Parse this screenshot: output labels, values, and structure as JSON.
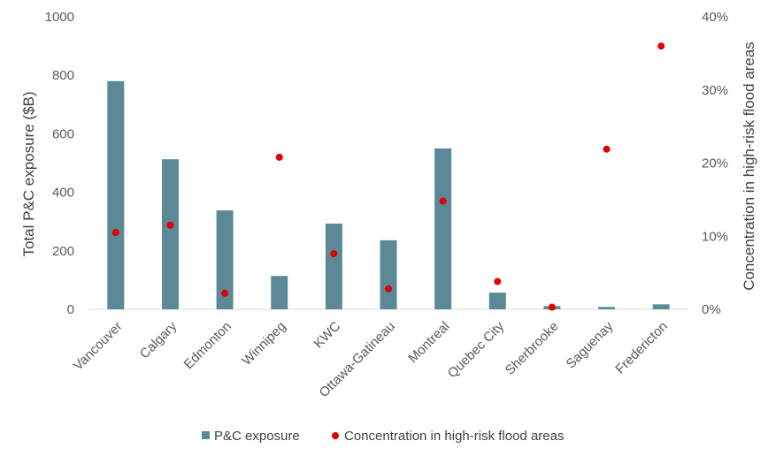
{
  "chart_data": {
    "type": "bar",
    "categories": [
      "Vancouver",
      "Calgary",
      "Edmonton",
      "Winnipeg",
      "KWC",
      "Ottawa-Gatineau",
      "Montreal",
      "Quebec City",
      "Sherbrooke",
      "Saguenay",
      "Fredericton"
    ],
    "series": [
      {
        "name": "P&C exposure",
        "type": "bar",
        "axis": "left",
        "color": "#5b8a96",
        "values": [
          780,
          513,
          338,
          114,
          293,
          236,
          550,
          57,
          11,
          8,
          17
        ]
      },
      {
        "name": "Concentration in high-risk flood areas",
        "type": "scatter",
        "axis": "right",
        "color": "#e00000",
        "values": [
          0.105,
          0.115,
          0.022,
          0.208,
          0.076,
          0.028,
          0.148,
          0.038,
          0.003,
          0.219,
          0.36
        ]
      }
    ],
    "ylabel": "Total P&C exposure ($B)",
    "y2label": "Concentration in high-risk flood areas",
    "ylim": [
      0,
      1000
    ],
    "y2lim": [
      0,
      0.4
    ],
    "yticks": [
      "0",
      "200",
      "400",
      "600",
      "800",
      "1000"
    ],
    "y2ticks": [
      "0%",
      "10%",
      "20%",
      "30%",
      "40%"
    ],
    "legend_position": "bottom"
  }
}
